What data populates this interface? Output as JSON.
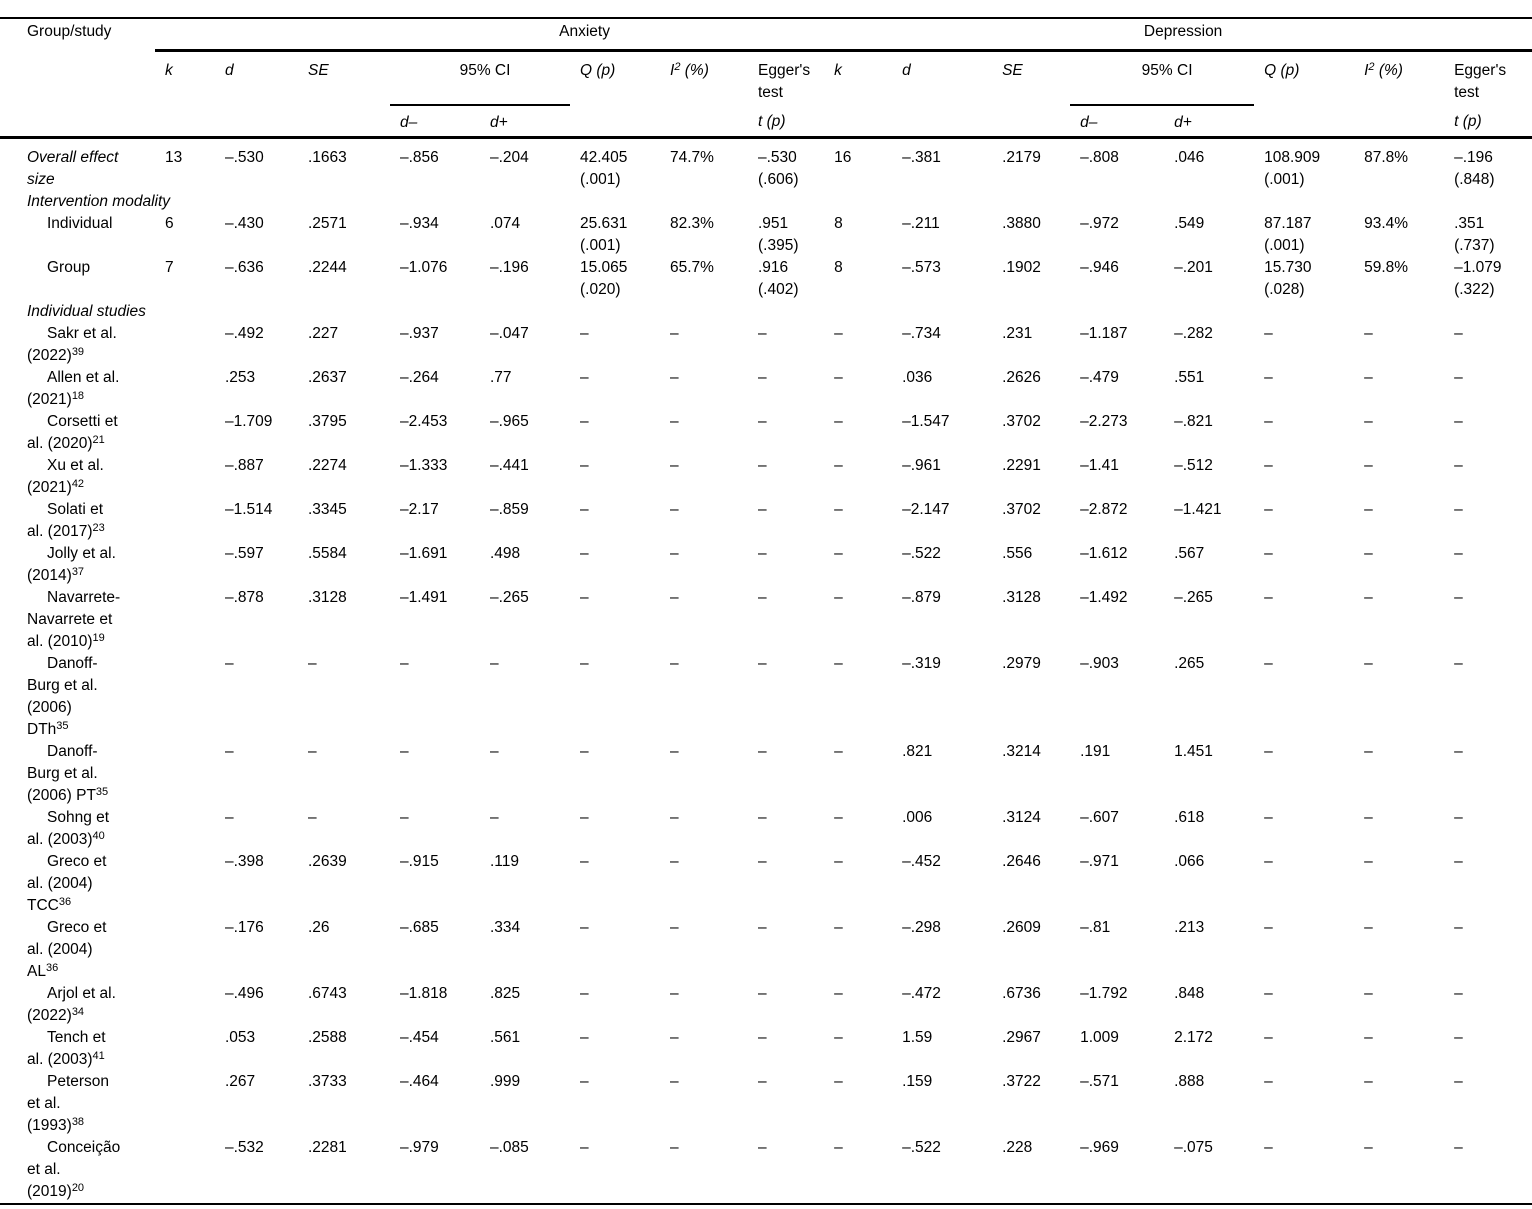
{
  "table": {
    "row_header": "Group/study",
    "spanners": {
      "anxiety": "Anxiety",
      "depression": "Depression"
    },
    "headers": {
      "k": "k",
      "d": "d",
      "se": "SE",
      "ci": "95% CI",
      "q": "Q (p)",
      "i2_base": "I",
      "i2_sup": "2",
      "i2_rest": " (%)",
      "egger": "Egger's test",
      "t": "t (p)",
      "d_lo": "d–",
      "d_hi": "d+"
    },
    "rows": [
      {
        "style": "italic",
        "label": "Overall effect\nsize",
        "cells": [
          "13",
          "–.530",
          ".1663",
          "–.856",
          "–.204",
          "42.405\n(.001)",
          "74.7%",
          "–.530\n(.606)",
          "16",
          "–.381",
          ".2179",
          "–.808",
          ".046",
          "108.909\n(.001)",
          "87.8%",
          "–.196\n(.848)"
        ]
      },
      {
        "style": "section",
        "label": "Intervention modality",
        "cells": []
      },
      {
        "style": "indent",
        "label": "Individual",
        "cells": [
          "6",
          "–.430",
          ".2571",
          "–.934",
          ".074",
          "25.631\n(.001)",
          "82.3%",
          ".951\n(.395)",
          "8",
          "–.211",
          ".3880",
          "–.972",
          ".549",
          "87.187\n(.001)",
          "93.4%",
          ".351\n(.737)"
        ]
      },
      {
        "style": "indent",
        "label": "Group",
        "cells": [
          "7",
          "–.636",
          ".2244",
          "–1.076",
          "–.196",
          "15.065\n(.020)",
          "65.7%",
          ".916\n(.402)",
          "8",
          "–.573",
          ".1902",
          "–.946",
          "–.201",
          "15.730\n(.028)",
          "59.8%",
          "–1.079\n(.322)"
        ]
      },
      {
        "style": "section",
        "label": "Individual studies",
        "cells": []
      },
      {
        "style": "study",
        "label": "Sakr et al.\n(2022)",
        "sup": "39",
        "cells": [
          "",
          "–.492",
          ".227",
          "–.937",
          "–.047",
          "–",
          "–",
          "–",
          "–",
          "–.734",
          ".231",
          "–1.187",
          "–.282",
          "–",
          "–",
          "–"
        ]
      },
      {
        "style": "study",
        "label": "Allen et al.\n(2021)",
        "sup": "18",
        "cells": [
          "",
          ".253",
          ".2637",
          "–.264",
          ".77",
          "–",
          "–",
          "–",
          "–",
          ".036",
          ".2626",
          "–.479",
          ".551",
          "–",
          "–",
          "–"
        ]
      },
      {
        "style": "study",
        "label": "Corsetti et\nal. (2020)",
        "sup": "21",
        "cells": [
          "",
          "–1.709",
          ".3795",
          "–2.453",
          "–.965",
          "–",
          "–",
          "–",
          "–",
          "–1.547",
          ".3702",
          "–2.273",
          "–.821",
          "–",
          "–",
          "–"
        ]
      },
      {
        "style": "study",
        "label": "Xu et al.\n(2021)",
        "sup": "42",
        "cells": [
          "",
          "–.887",
          ".2274",
          "–1.333",
          "–.441",
          "–",
          "–",
          "–",
          "–",
          "–.961",
          ".2291",
          "–1.41",
          "–.512",
          "–",
          "–",
          "–"
        ]
      },
      {
        "style": "study",
        "label": "Solati et\nal. (2017)",
        "sup": "23",
        "cells": [
          "",
          "–1.514",
          ".3345",
          "–2.17",
          "–.859",
          "–",
          "–",
          "–",
          "–",
          "–2.147",
          ".3702",
          "–2.872",
          "–1.421",
          "–",
          "–",
          "–"
        ]
      },
      {
        "style": "study",
        "label": "Jolly et al.\n(2014)",
        "sup": "37",
        "cells": [
          "",
          "–.597",
          ".5584",
          "–1.691",
          ".498",
          "–",
          "–",
          "–",
          "–",
          "–.522",
          ".556",
          "–1.612",
          ".567",
          "–",
          "–",
          "–"
        ]
      },
      {
        "style": "study",
        "label": "Navarrete-\nNavarrete et\nal. (2010)",
        "sup": "19",
        "cells": [
          "",
          "–.878",
          ".3128",
          "–1.491",
          "–.265",
          "–",
          "–",
          "–",
          "–",
          "–.879",
          ".3128",
          "–1.492",
          "–.265",
          "–",
          "–",
          "–"
        ]
      },
      {
        "style": "study",
        "label": "Danoff-\nBurg et al.\n(2006)\nDTh",
        "sup": "35",
        "cells": [
          "",
          "–",
          "–",
          "–",
          "–",
          "–",
          "–",
          "–",
          "–",
          "–.319",
          ".2979",
          "–.903",
          ".265",
          "–",
          "–",
          "–"
        ]
      },
      {
        "style": "study",
        "label": "Danoff-\nBurg et al.\n(2006) PT",
        "sup": "35",
        "cells": [
          "",
          "–",
          "–",
          "–",
          "–",
          "–",
          "–",
          "–",
          "–",
          ".821",
          ".3214",
          ".191",
          "1.451",
          "–",
          "–",
          "–"
        ]
      },
      {
        "style": "study",
        "label": "Sohng et\nal. (2003)",
        "sup": "40",
        "cells": [
          "",
          "–",
          "–",
          "–",
          "–",
          "–",
          "–",
          "–",
          "–",
          ".006",
          ".3124",
          "–.607",
          ".618",
          "–",
          "–",
          "–"
        ]
      },
      {
        "style": "study",
        "label": "Greco et\nal. (2004)\nTCC",
        "sup": "36",
        "cells": [
          "",
          "–.398",
          ".2639",
          "–.915",
          ".119",
          "–",
          "–",
          "–",
          "–",
          "–.452",
          ".2646",
          "–.971",
          ".066",
          "–",
          "–",
          "–"
        ]
      },
      {
        "style": "study",
        "label": "Greco et\nal. (2004)\nAL",
        "sup": "36",
        "cells": [
          "",
          "–.176",
          ".26",
          "–.685",
          ".334",
          "–",
          "–",
          "–",
          "–",
          "–.298",
          ".2609",
          "–.81",
          ".213",
          "–",
          "–",
          "–"
        ]
      },
      {
        "style": "study",
        "label": "Arjol et al.\n(2022)",
        "sup": "34",
        "cells": [
          "",
          "–.496",
          ".6743",
          "–1.818",
          ".825",
          "–",
          "–",
          "–",
          "–",
          "–.472",
          ".6736",
          "–1.792",
          ".848",
          "–",
          "–",
          "–"
        ]
      },
      {
        "style": "study",
        "label": "Tench et\nal. (2003)",
        "sup": "41",
        "cells": [
          "",
          ".053",
          ".2588",
          "–.454",
          ".561",
          "–",
          "–",
          "–",
          "–",
          "1.59",
          ".2967",
          "1.009",
          "2.172",
          "–",
          "–",
          "–"
        ]
      },
      {
        "style": "study",
        "label": "Peterson\net al.\n(1993)",
        "sup": "38",
        "cells": [
          "",
          ".267",
          ".3733",
          "–.464",
          ".999",
          "–",
          "–",
          "–",
          "–",
          ".159",
          ".3722",
          "–.571",
          ".888",
          "–",
          "–",
          "–"
        ]
      },
      {
        "style": "study",
        "label": "Conceição\net al.\n(2019)",
        "sup": "20",
        "cells": [
          "",
          "–.532",
          ".2281",
          "–.979",
          "–.085",
          "–",
          "–",
          "–",
          "–",
          "–.522",
          ".228",
          "–.969",
          "–.075",
          "–",
          "–",
          "–"
        ]
      }
    ]
  }
}
